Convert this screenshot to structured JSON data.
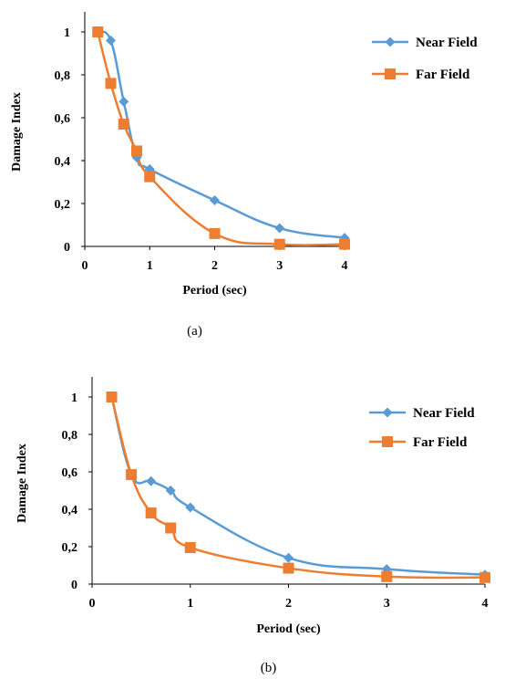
{
  "colors": {
    "near_field": "#5B9BD5",
    "far_field": "#ED7D31",
    "axis": "#000000"
  },
  "chart_data": [
    {
      "type": "line",
      "caption": "(a)",
      "xlabel": "Period (sec)",
      "ylabel": "Damage Index",
      "xlim": [
        0,
        4
      ],
      "ylim": [
        0,
        1
      ],
      "x_ticks": [
        "0",
        "1",
        "2",
        "3",
        "4"
      ],
      "y_ticks": [
        "0",
        "0,2",
        "0,4",
        "0,6",
        "0,8",
        "1"
      ],
      "legend_position": "top-right",
      "grid": false,
      "series": [
        {
          "name": "Near Field",
          "marker": "diamond",
          "x": [
            0.2,
            0.4,
            0.6,
            0.8,
            1,
            2,
            3,
            4
          ],
          "y": [
            1.0,
            0.96,
            0.675,
            0.415,
            0.36,
            0.215,
            0.085,
            0.04
          ]
        },
        {
          "name": "Far Field",
          "marker": "square",
          "x": [
            0.2,
            0.4,
            0.6,
            0.8,
            1,
            2,
            3,
            4
          ],
          "y": [
            1.0,
            0.76,
            0.57,
            0.445,
            0.325,
            0.06,
            0.01,
            0.01
          ]
        }
      ]
    },
    {
      "type": "line",
      "caption": "(b)",
      "xlabel": "Period (sec)",
      "ylabel": "Damage Index",
      "xlim": [
        0,
        4
      ],
      "ylim": [
        0,
        1
      ],
      "x_ticks": [
        "0",
        "1",
        "2",
        "3",
        "4"
      ],
      "y_ticks": [
        "0",
        "0,2",
        "0,4",
        "0,6",
        "0,8",
        "1"
      ],
      "legend_position": "top-right",
      "grid": false,
      "series": [
        {
          "name": "Near Field",
          "marker": "diamond",
          "x": [
            0.2,
            0.4,
            0.6,
            0.8,
            1,
            2,
            3,
            4
          ],
          "y": [
            1.0,
            0.585,
            0.55,
            0.5,
            0.41,
            0.14,
            0.08,
            0.05
          ]
        },
        {
          "name": "Far Field",
          "marker": "square",
          "x": [
            0.2,
            0.4,
            0.6,
            0.8,
            1,
            2,
            3,
            4
          ],
          "y": [
            1.0,
            0.585,
            0.38,
            0.3,
            0.195,
            0.085,
            0.04,
            0.035
          ]
        }
      ]
    }
  ]
}
